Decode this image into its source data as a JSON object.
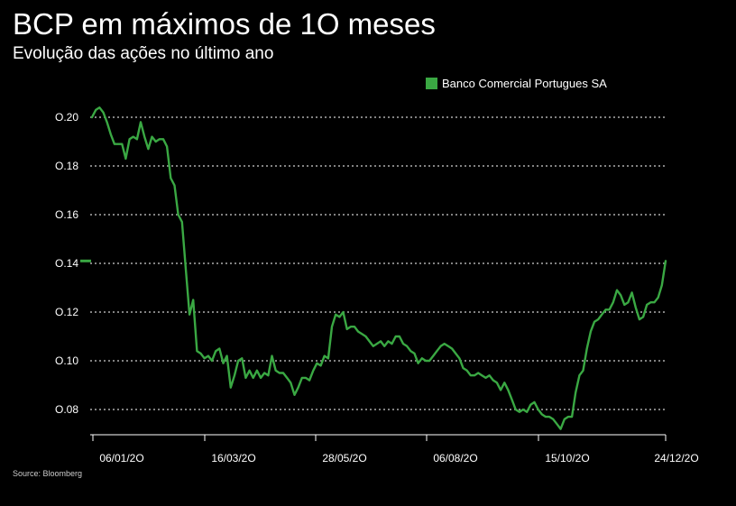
{
  "chart_data": {
    "type": "line",
    "title": "BCP em máximos de 1O meses",
    "subtitle": "Evolução das ações no último ano",
    "source": "Source: Bloomberg",
    "legend_placement": "top-right",
    "series": [
      {
        "name": "Banco Comercial Portugues SA",
        "color": "#3aa843",
        "last_value_marker": 0.141,
        "values": [
          0.2,
          0.203,
          0.204,
          0.202,
          0.198,
          0.193,
          0.189,
          0.189,
          0.189,
          0.183,
          0.191,
          0.192,
          0.191,
          0.198,
          0.192,
          0.187,
          0.192,
          0.19,
          0.191,
          0.191,
          0.188,
          0.175,
          0.172,
          0.16,
          0.157,
          0.138,
          0.119,
          0.125,
          0.104,
          0.103,
          0.101,
          0.102,
          0.1,
          0.104,
          0.105,
          0.099,
          0.102,
          0.089,
          0.094,
          0.1,
          0.101,
          0.093,
          0.096,
          0.093,
          0.096,
          0.093,
          0.095,
          0.094,
          0.102,
          0.096,
          0.095,
          0.095,
          0.093,
          0.091,
          0.086,
          0.089,
          0.093,
          0.093,
          0.092,
          0.096,
          0.099,
          0.098,
          0.102,
          0.101,
          0.114,
          0.119,
          0.118,
          0.12,
          0.113,
          0.114,
          0.114,
          0.112,
          0.111,
          0.11,
          0.108,
          0.106,
          0.107,
          0.108,
          0.106,
          0.108,
          0.107,
          0.11,
          0.11,
          0.107,
          0.106,
          0.104,
          0.103,
          0.099,
          0.101,
          0.1,
          0.1,
          0.102,
          0.104,
          0.106,
          0.107,
          0.106,
          0.105,
          0.103,
          0.101,
          0.097,
          0.096,
          0.094,
          0.094,
          0.095,
          0.094,
          0.093,
          0.094,
          0.092,
          0.091,
          0.088,
          0.091,
          0.088,
          0.084,
          0.08,
          0.079,
          0.08,
          0.079,
          0.082,
          0.083,
          0.08,
          0.078,
          0.077,
          0.077,
          0.076,
          0.074,
          0.072,
          0.076,
          0.077,
          0.077,
          0.087,
          0.094,
          0.096,
          0.105,
          0.112,
          0.116,
          0.117,
          0.119,
          0.121,
          0.121,
          0.124,
          0.129,
          0.127,
          0.123,
          0.124,
          0.128,
          0.122,
          0.117,
          0.118,
          0.123,
          0.124,
          0.124,
          0.126,
          0.131,
          0.141
        ]
      }
    ],
    "x_tick_labels": [
      "06/01/2O",
      "16/03/2O",
      "28/05/2O",
      "06/08/2O",
      "15/10/2O",
      "24/12/2O"
    ],
    "y_tick_labels": [
      "O.08",
      "O.10",
      "O.12",
      "O.14",
      "O.16",
      "O.18",
      "O.20"
    ],
    "y_ticks": [
      0.08,
      0.1,
      0.12,
      0.14,
      0.16,
      0.18,
      0.2
    ],
    "ylim": [
      0.07,
      0.205
    ],
    "grid": true,
    "grid_style": "dotted"
  }
}
